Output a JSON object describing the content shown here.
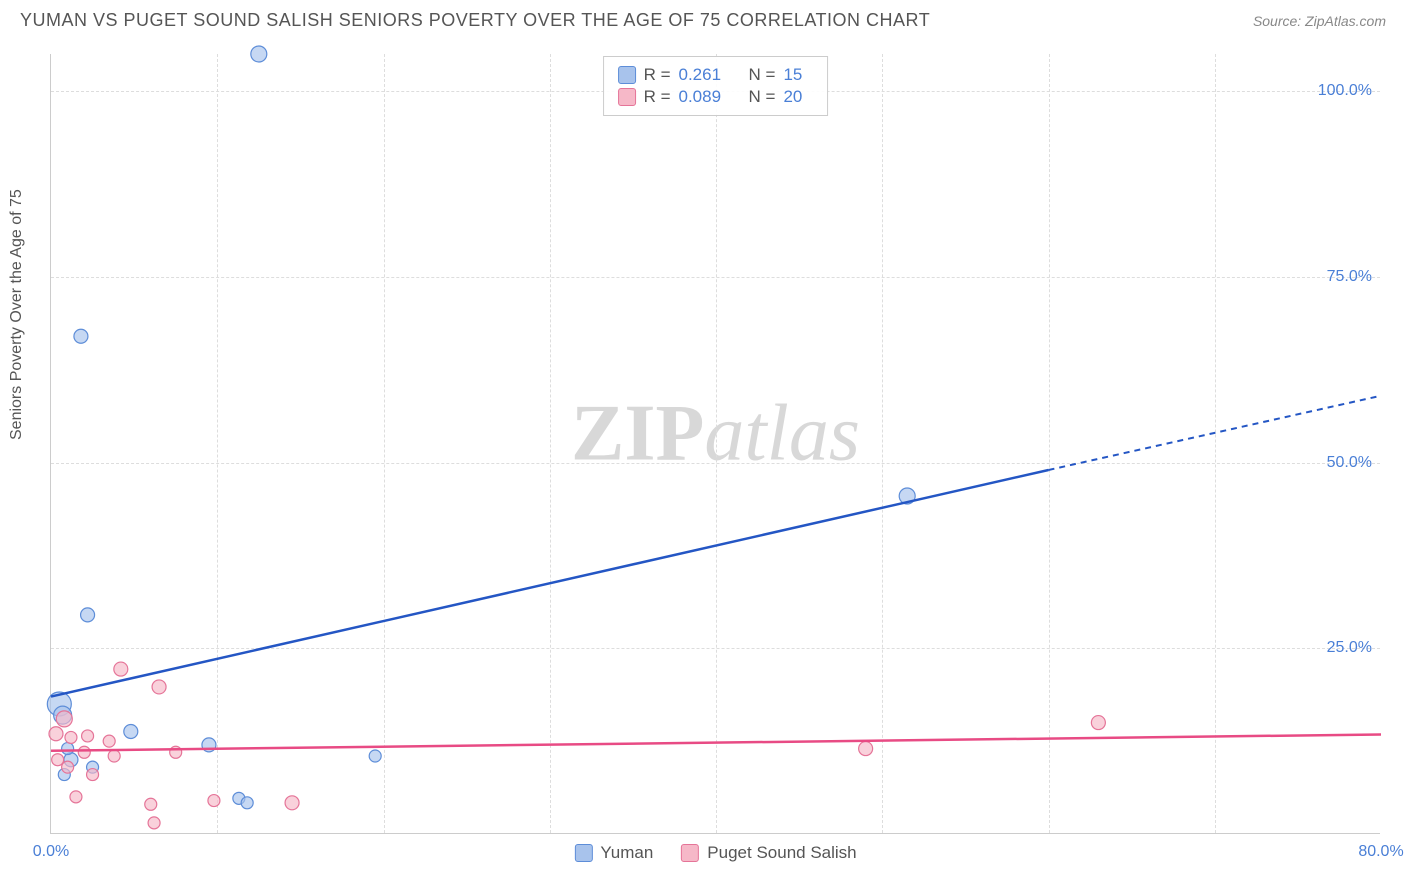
{
  "header": {
    "title": "YUMAN VS PUGET SOUND SALISH SENIORS POVERTY OVER THE AGE OF 75 CORRELATION CHART",
    "source": "Source: ZipAtlas.com"
  },
  "chart": {
    "type": "scatter",
    "ylabel": "Seniors Poverty Over the Age of 75",
    "xlim": [
      0,
      80
    ],
    "ylim": [
      0,
      105
    ],
    "ytick_values": [
      25,
      50,
      75,
      100
    ],
    "ytick_labels": [
      "25.0%",
      "50.0%",
      "75.0%",
      "100.0%"
    ],
    "xtick_values": [
      0,
      80
    ],
    "xtick_labels": [
      "0.0%",
      "80.0%"
    ],
    "xgrid_values": [
      10,
      20,
      30,
      40,
      50,
      60,
      70
    ],
    "grid_color": "#dddddd",
    "background_color": "#ffffff",
    "watermark_text_a": "ZIP",
    "watermark_text_b": "atlas"
  },
  "series": [
    {
      "name": "Yuman",
      "fill_color": "#a8c3ec",
      "stroke_color": "#5d8dd8",
      "r_value": "0.261",
      "n_value": "15",
      "trend_color": "#2456c4",
      "trend_start": {
        "x": 0,
        "y": 18.5
      },
      "trend_solid_end": {
        "x": 60,
        "y": 49
      },
      "trend_dashed_end": {
        "x": 80,
        "y": 59
      },
      "points": [
        {
          "x": 12.5,
          "y": 105,
          "r": 8
        },
        {
          "x": 1.8,
          "y": 67,
          "r": 7
        },
        {
          "x": 2.2,
          "y": 29.5,
          "r": 7
        },
        {
          "x": 4.8,
          "y": 13.8,
          "r": 7
        },
        {
          "x": 9.5,
          "y": 12.0,
          "r": 7
        },
        {
          "x": 0.5,
          "y": 17.5,
          "r": 12
        },
        {
          "x": 0.7,
          "y": 16.0,
          "r": 9
        },
        {
          "x": 1.2,
          "y": 10.0,
          "r": 7
        },
        {
          "x": 2.5,
          "y": 9.0,
          "r": 6
        },
        {
          "x": 0.8,
          "y": 8.0,
          "r": 6
        },
        {
          "x": 19.5,
          "y": 10.5,
          "r": 6
        },
        {
          "x": 11.3,
          "y": 4.8,
          "r": 6
        },
        {
          "x": 11.8,
          "y": 4.2,
          "r": 6
        },
        {
          "x": 51.5,
          "y": 45.5,
          "r": 8
        },
        {
          "x": 1.0,
          "y": 11.5,
          "r": 6
        }
      ]
    },
    {
      "name": "Puget Sound Salish",
      "fill_color": "#f6b8c8",
      "stroke_color": "#e57498",
      "r_value": "0.089",
      "n_value": "20",
      "trend_color": "#e84b84",
      "trend_start": {
        "x": 0,
        "y": 11.2
      },
      "trend_solid_end": {
        "x": 80,
        "y": 13.4
      },
      "trend_dashed_end": null,
      "points": [
        {
          "x": 4.2,
          "y": 22.2,
          "r": 7
        },
        {
          "x": 6.5,
          "y": 19.8,
          "r": 7
        },
        {
          "x": 0.8,
          "y": 15.5,
          "r": 8
        },
        {
          "x": 0.3,
          "y": 13.5,
          "r": 7
        },
        {
          "x": 1.2,
          "y": 13.0,
          "r": 6
        },
        {
          "x": 2.2,
          "y": 13.2,
          "r": 6
        },
        {
          "x": 3.5,
          "y": 12.5,
          "r": 6
        },
        {
          "x": 2.0,
          "y": 11.0,
          "r": 6
        },
        {
          "x": 3.8,
          "y": 10.5,
          "r": 6
        },
        {
          "x": 0.4,
          "y": 10.0,
          "r": 6
        },
        {
          "x": 1.0,
          "y": 9.0,
          "r": 6
        },
        {
          "x": 2.5,
          "y": 8.0,
          "r": 6
        },
        {
          "x": 7.5,
          "y": 11.0,
          "r": 6
        },
        {
          "x": 1.5,
          "y": 5.0,
          "r": 6
        },
        {
          "x": 6.0,
          "y": 4.0,
          "r": 6
        },
        {
          "x": 9.8,
          "y": 4.5,
          "r": 6
        },
        {
          "x": 14.5,
          "y": 4.2,
          "r": 7
        },
        {
          "x": 6.2,
          "y": 1.5,
          "r": 6
        },
        {
          "x": 49.0,
          "y": 11.5,
          "r": 7
        },
        {
          "x": 63.0,
          "y": 15.0,
          "r": 7
        }
      ]
    }
  ],
  "legend_bottom_labels": [
    "Yuman",
    "Puget Sound Salish"
  ],
  "stat_labels": {
    "r": "R =",
    "n": "N ="
  }
}
